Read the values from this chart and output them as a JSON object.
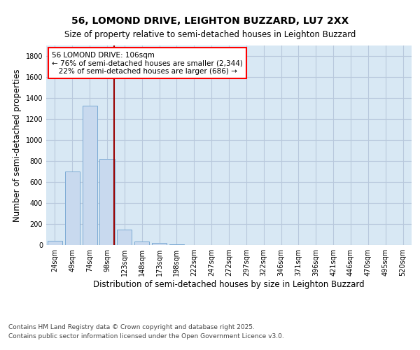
{
  "title": "56, LOMOND DRIVE, LEIGHTON BUZZARD, LU7 2XX",
  "subtitle": "Size of property relative to semi-detached houses in Leighton Buzzard",
  "xlabel": "Distribution of semi-detached houses by size in Leighton Buzzard",
  "ylabel": "Number of semi-detached properties",
  "categories": [
    "24sqm",
    "49sqm",
    "74sqm",
    "98sqm",
    "123sqm",
    "148sqm",
    "173sqm",
    "198sqm",
    "222sqm",
    "247sqm",
    "272sqm",
    "297sqm",
    "322sqm",
    "346sqm",
    "371sqm",
    "396sqm",
    "421sqm",
    "446sqm",
    "470sqm",
    "495sqm",
    "520sqm"
  ],
  "values": [
    40,
    700,
    1330,
    820,
    150,
    35,
    20,
    10,
    0,
    0,
    0,
    0,
    0,
    0,
    0,
    0,
    0,
    0,
    0,
    0,
    0
  ],
  "bar_color": "#c8d9ee",
  "bar_edge_color": "#7baad4",
  "grid_color": "#b8c8dc",
  "bg_color": "#d8e8f4",
  "annotation_line1": "56 LOMOND DRIVE: 106sqm",
  "annotation_line2": "← 76% of semi-detached houses are smaller (2,344)",
  "annotation_line3": "   22% of semi-detached houses are larger (686) →",
  "property_line_x": 3.42,
  "ylim": [
    0,
    1900
  ],
  "yticks": [
    0,
    200,
    400,
    600,
    800,
    1000,
    1200,
    1400,
    1600,
    1800
  ],
  "footer_line1": "Contains HM Land Registry data © Crown copyright and database right 2025.",
  "footer_line2": "Contains public sector information licensed under the Open Government Licence v3.0.",
  "red_line_color": "#990000",
  "title_fontsize": 10,
  "subtitle_fontsize": 8.5,
  "axis_label_fontsize": 8.5,
  "tick_fontsize": 7,
  "footer_fontsize": 6.5,
  "ann_fontsize": 7.5
}
